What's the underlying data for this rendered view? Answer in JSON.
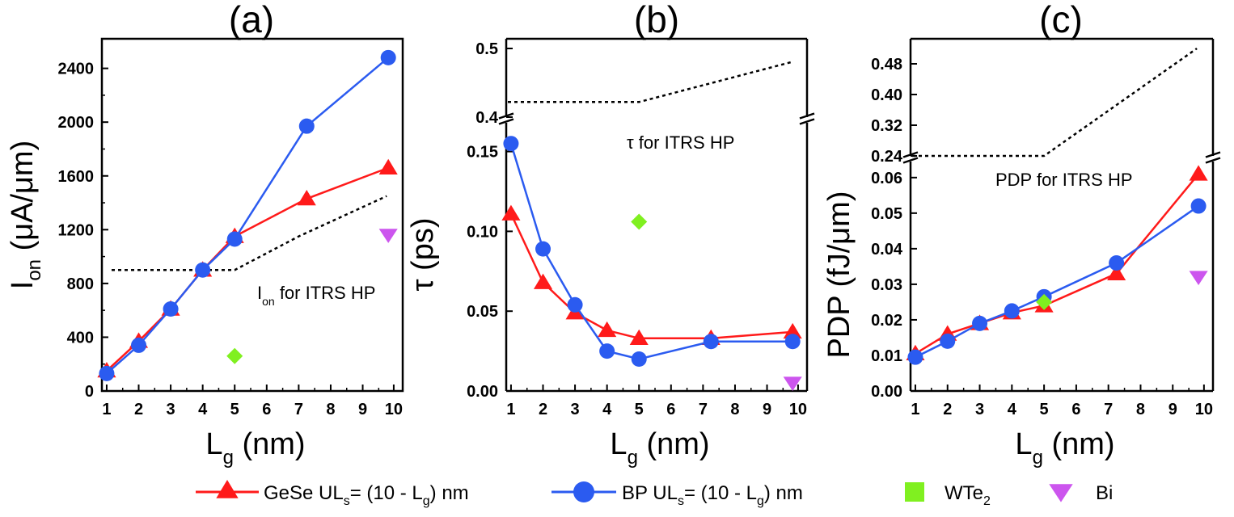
{
  "colors": {
    "gese": "#ff1a1a",
    "bp": "#2b5bf0",
    "wte2": "#80f020",
    "bi": "#cc55ee",
    "itrs": "#000000"
  },
  "legend": {
    "gese": {
      "prefix": "GeSe UL",
      "sub": "s",
      "suffix": "= (10 - L",
      "sub2": "g",
      "end": ") nm"
    },
    "bp": {
      "prefix": "BP UL",
      "sub": "s",
      "suffix": "= (10 - L",
      "sub2": "g",
      "end": ") nm"
    },
    "wte2": {
      "prefix": "WTe",
      "sub": "2"
    },
    "bi": {
      "label": "Bi"
    }
  },
  "chart_data": [
    {
      "type": "line",
      "panel_label": "(a)",
      "xlabel": {
        "main": "L",
        "sub": "g",
        "rest": " (nm)"
      },
      "ylabel": {
        "main": "I",
        "sub": "on",
        "rest": " (μA/μm)"
      },
      "x_ticks": [
        "1",
        "2",
        "3",
        "4",
        "5",
        "6",
        "7",
        "8",
        "9",
        "10"
      ],
      "y_ticks": [
        "0",
        "400",
        "800",
        "1200",
        "1600",
        "2000",
        "2400"
      ],
      "ylim": [
        0,
        2480
      ],
      "series": [
        {
          "name": "GeSe",
          "x": [
            1,
            2,
            3,
            4,
            5,
            7,
            10
          ],
          "y": [
            150,
            370,
            610,
            900,
            1150,
            1430,
            1660
          ]
        },
        {
          "name": "BP",
          "x": [
            1,
            2,
            3,
            4,
            5,
            7,
            10
          ],
          "y": [
            130,
            340,
            610,
            900,
            1130,
            1970,
            2480
          ]
        },
        {
          "name": "WTe2",
          "x": [
            5
          ],
          "y": [
            260
          ]
        },
        {
          "name": "Bi",
          "x": [
            10
          ],
          "y": [
            1160
          ]
        }
      ],
      "itrs": {
        "x": [
          1,
          5,
          7,
          10
        ],
        "y": [
          900,
          900,
          1150,
          1450
        ]
      },
      "annotation": {
        "main": "I",
        "sub": "on",
        "rest": " for ITRS HP"
      }
    },
    {
      "type": "line",
      "panel_label": "(b)",
      "xlabel": {
        "main": "L",
        "sub": "g",
        "rest": " (nm)"
      },
      "ylabel": {
        "main": "τ",
        "sub": "",
        "rest": " (ps)"
      },
      "x_ticks": [
        "1",
        "2",
        "3",
        "4",
        "5",
        "6",
        "7",
        "8",
        "9",
        "10"
      ],
      "y_ticks_lower": [
        "0.00",
        "0.05",
        "0.10",
        "0.15"
      ],
      "y_ticks_upper": [
        "0.4",
        "0.5"
      ],
      "ylim_lower": [
        0,
        0.168
      ],
      "ylim_upper": [
        0.4,
        0.5
      ],
      "series": [
        {
          "name": "GeSe",
          "x": [
            1,
            2,
            3,
            4,
            5,
            7,
            10
          ],
          "y": [
            0.111,
            0.068,
            0.049,
            0.038,
            0.033,
            0.033,
            0.037
          ]
        },
        {
          "name": "BP",
          "x": [
            1,
            2,
            3,
            4,
            5,
            7,
            10
          ],
          "y": [
            0.155,
            0.089,
            0.054,
            0.025,
            0.02,
            0.031,
            0.031
          ]
        },
        {
          "name": "WTe2",
          "x": [
            5
          ],
          "y": [
            0.106
          ]
        },
        {
          "name": "Bi",
          "x": [
            10
          ],
          "y": [
            0.005
          ]
        }
      ],
      "itrs": {
        "x": [
          1,
          5,
          10
        ],
        "y": [
          0.422,
          0.422,
          0.48
        ]
      },
      "annotation": {
        "main": "τ for ITRS HP"
      }
    },
    {
      "type": "line",
      "panel_label": "(c)",
      "xlabel": {
        "main": "L",
        "sub": "g",
        "rest": " (nm)"
      },
      "ylabel": {
        "main": "PDP",
        "sub": "",
        "rest": " (fJ/μm)"
      },
      "x_ticks": [
        "1",
        "2",
        "3",
        "4",
        "5",
        "6",
        "7",
        "8",
        "9",
        "10"
      ],
      "y_ticks_lower": [
        "0.00",
        "0.01",
        "0.02",
        "0.03",
        "0.04",
        "0.05",
        "0.06"
      ],
      "y_ticks_upper": [
        "0.24",
        "0.32",
        "0.40",
        "0.48"
      ],
      "ylim_lower": [
        0,
        0.0645
      ],
      "ylim_upper": [
        0.24,
        0.52
      ],
      "series": [
        {
          "name": "GeSe",
          "x": [
            1,
            2,
            3,
            4,
            5,
            7,
            10
          ],
          "y": [
            0.0105,
            0.016,
            0.019,
            0.022,
            0.024,
            0.033,
            0.061
          ]
        },
        {
          "name": "BP",
          "x": [
            1,
            2,
            3,
            4,
            5,
            7,
            10
          ],
          "y": [
            0.0095,
            0.014,
            0.019,
            0.0225,
            0.0265,
            0.036,
            0.052
          ]
        },
        {
          "name": "WTe2",
          "x": [
            5
          ],
          "y": [
            0.025
          ]
        },
        {
          "name": "Bi",
          "x": [
            10
          ],
          "y": [
            0.032
          ]
        }
      ],
      "itrs": {
        "x": [
          1,
          5,
          10
        ],
        "y": [
          0.24,
          0.24,
          0.52
        ]
      },
      "annotation": {
        "main": "PDP for ITRS HP"
      }
    }
  ]
}
